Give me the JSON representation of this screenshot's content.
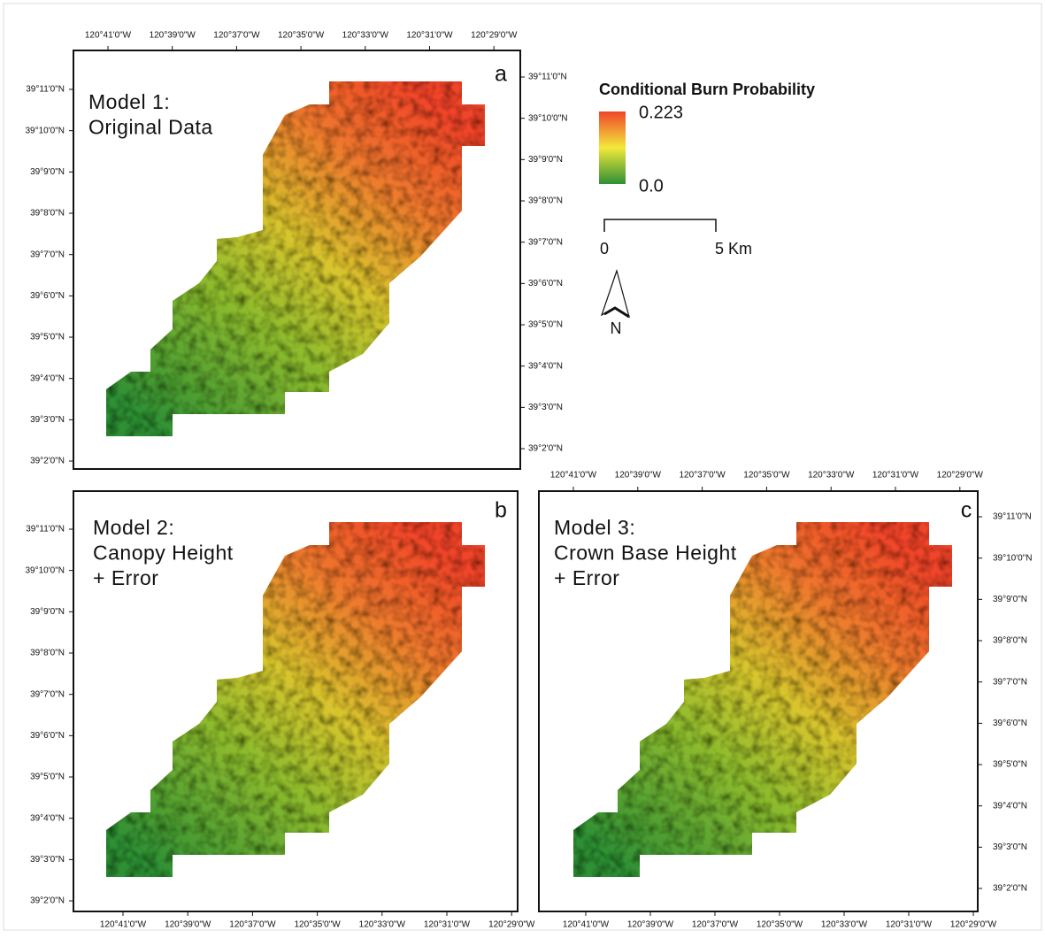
{
  "figure": {
    "panels": [
      {
        "label": "a",
        "title": [
          "Model 1:",
          "Original Data"
        ]
      },
      {
        "label": "b",
        "title": [
          "Model 2:",
          "Canopy Height",
          "+ Error"
        ]
      },
      {
        "label": "c",
        "title": [
          "Model 3:",
          "Crown Base Height",
          "+ Error"
        ]
      }
    ],
    "longitude_ticks": [
      "120°41'0\"W",
      "120°39'0\"W",
      "120°37'0\"W",
      "120°35'0\"W",
      "120°33'0\"W",
      "120°31'0\"W",
      "120°29'0\"W"
    ],
    "latitude_ticks": [
      "39°11'0\"N",
      "39°10'0\"N",
      "39°9'0\"N",
      "39°8'0\"N",
      "39°7'0\"N",
      "39°6'0\"N",
      "39°5'0\"N",
      "39°4'0\"N",
      "39°3'0\"N",
      "39°2'0\"N"
    ],
    "legend": {
      "title": "Conditional Burn Probability",
      "max_label": "0.223",
      "min_label": "0.0"
    },
    "scale_bar": {
      "start_label": "0",
      "end_label": "5 Km"
    },
    "north_arrow": {
      "label": "N"
    }
  }
}
